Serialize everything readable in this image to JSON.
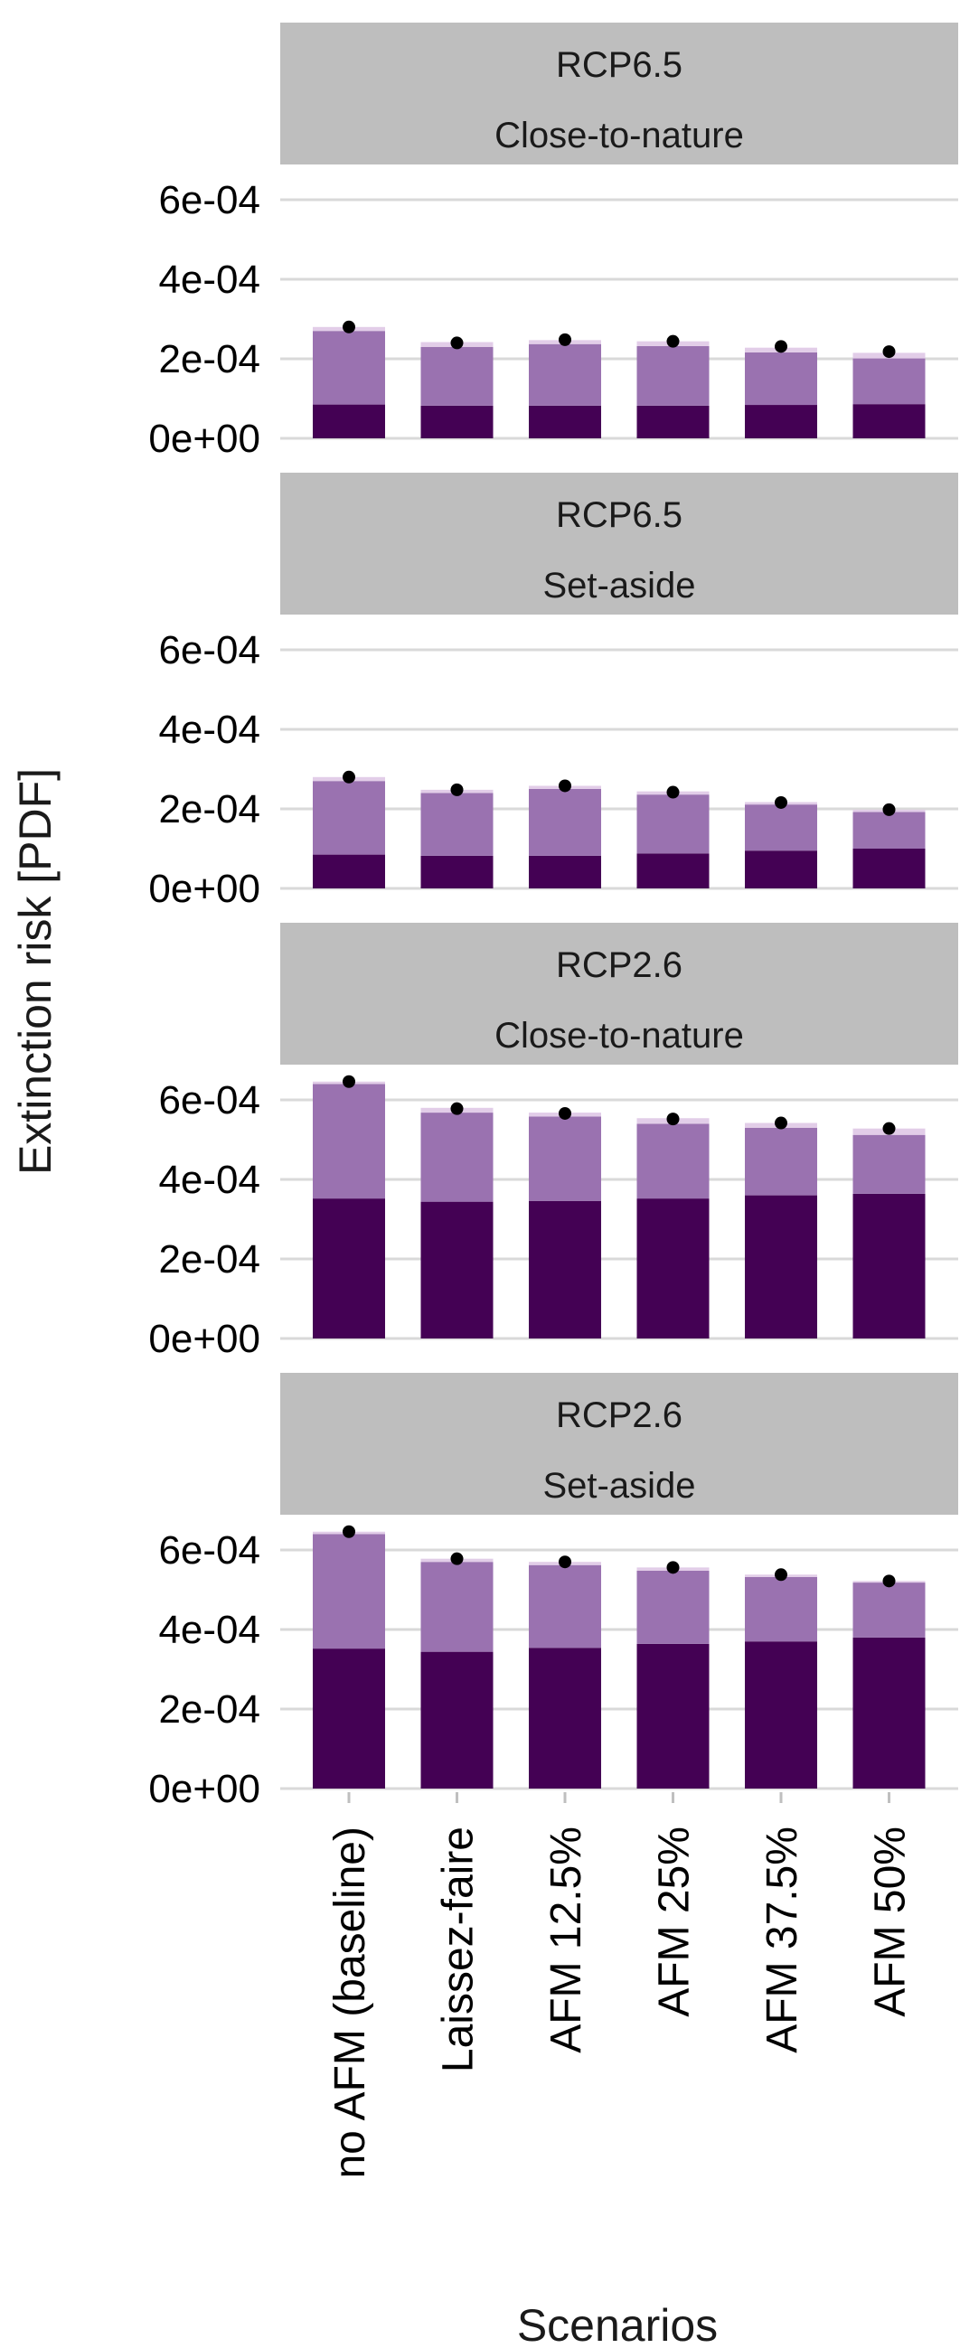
{
  "colors": {
    "strip_bg": "#bebebe",
    "grid": "#d9d9d9",
    "tick": "#bfbfbf",
    "bar_bottom": "#440154",
    "bar_middle": "#9a72b0",
    "bar_top": "#e2cde8",
    "point": "#000000"
  },
  "chart_data": {
    "type": "bar",
    "stacked": true,
    "xlabel": "Scenarios",
    "ylabel": "Extinction risk [PDF]",
    "ylim": [
      0,
      0.0006
    ],
    "yticks": [
      0,
      0.0002,
      0.0004,
      0.0006
    ],
    "ytick_labels": [
      "0e+00",
      "2e-04",
      "4e-04",
      "6e-04"
    ],
    "grid": true,
    "legend": "none",
    "categories": [
      "no AFM (baseline)",
      "Laissez-faire",
      "AFM 12.5%",
      "AFM 25%",
      "AFM 37.5%",
      "AFM 50%"
    ],
    "panels": [
      {
        "strip": [
          "RCP6.5",
          "Close-to-nature"
        ],
        "bottom": [
          8.5e-05,
          8.2e-05,
          8.2e-05,
          8.2e-05,
          8.4e-05,
          8.6e-05
        ],
        "middle": [
          0.000185,
          0.000148,
          0.000155,
          0.00015,
          0.000132,
          0.000115
        ],
        "top": [
          1e-05,
          1.2e-05,
          1e-05,
          1.2e-05,
          1.2e-05,
          1.4e-05
        ],
        "points": [
          0.00028,
          0.00024,
          0.000248,
          0.000244,
          0.000231,
          0.000218
        ]
      },
      {
        "strip": [
          "RCP6.5",
          "Set-aside"
        ],
        "bottom": [
          8.5e-05,
          8.2e-05,
          8.2e-05,
          8.8e-05,
          9.5e-05,
          0.0001
        ],
        "middle": [
          0.000185,
          0.000158,
          0.000168,
          0.000148,
          0.000116,
          9.2e-05
        ],
        "top": [
          1e-05,
          8e-06,
          8e-06,
          8e-06,
          6e-06,
          6e-06
        ],
        "points": [
          0.00028,
          0.000248,
          0.000258,
          0.000242,
          0.000216,
          0.000198
        ]
      },
      {
        "strip": [
          "RCP2.6",
          "Close-to-nature"
        ],
        "bottom": [
          0.000352,
          0.000344,
          0.000346,
          0.000352,
          0.00036,
          0.000364
        ],
        "middle": [
          0.000288,
          0.000224,
          0.000212,
          0.000188,
          0.00017,
          0.000148
        ],
        "top": [
          6e-06,
          1.2e-05,
          1e-05,
          1.4e-05,
          1.2e-05,
          1.6e-05
        ],
        "points": [
          0.000646,
          0.000578,
          0.000566,
          0.000552,
          0.000542,
          0.000528
        ]
      },
      {
        "strip": [
          "RCP2.6",
          "Set-aside"
        ],
        "bottom": [
          0.000352,
          0.000344,
          0.000354,
          0.000364,
          0.00037,
          0.00038
        ],
        "middle": [
          0.000288,
          0.000226,
          0.000208,
          0.000184,
          0.000162,
          0.000138
        ],
        "top": [
          6e-06,
          8e-06,
          8e-06,
          8e-06,
          6e-06,
          4e-06
        ],
        "points": [
          0.000646,
          0.000578,
          0.00057,
          0.000556,
          0.000538,
          0.000522
        ]
      }
    ]
  }
}
